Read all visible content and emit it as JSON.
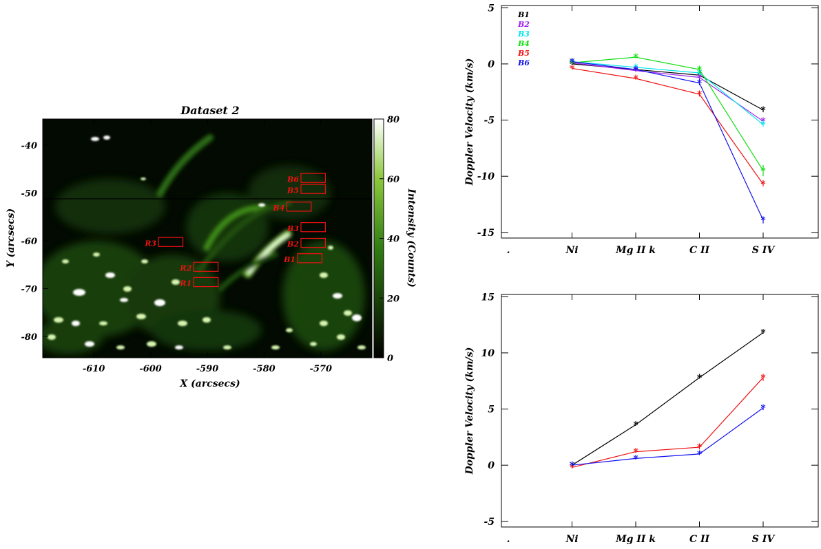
{
  "colors": {
    "map_low": "#000000",
    "map_high": "#ffffff",
    "map_green": "#3a8f1a",
    "region_box": "#ee1111",
    "axis": "#000000"
  },
  "chart_data": [
    {
      "type": "heatmap",
      "title": "Dataset 2",
      "xlabel": "X (arcsecs)",
      "ylabel": "Y (arcsecs)",
      "xlim": [
        -619,
        -561
      ],
      "ylim": [
        -84.5,
        -34.5
      ],
      "xticks": [
        -610,
        -600,
        -590,
        -580,
        -570
      ],
      "yticks": [
        -40,
        -50,
        -60,
        -70,
        -80
      ],
      "colorbar": {
        "label": "Intensity (Counts)",
        "range": [
          0,
          80
        ],
        "ticks": [
          0,
          20,
          40,
          60,
          80
        ]
      },
      "regions": [
        {
          "name": "B6",
          "x0": -573.5,
          "x1": -569.2,
          "y0": -47.8,
          "y1": -45.9
        },
        {
          "name": "B5",
          "x0": -573.5,
          "x1": -569.2,
          "y0": -50.1,
          "y1": -48.2
        },
        {
          "name": "B4",
          "x0": -576.0,
          "x1": -571.7,
          "y0": -53.8,
          "y1": -51.9
        },
        {
          "name": "B3",
          "x0": -573.5,
          "x1": -569.2,
          "y0": -58.1,
          "y1": -56.2
        },
        {
          "name": "B2",
          "x0": -573.5,
          "x1": -569.2,
          "y0": -61.4,
          "y1": -59.5
        },
        {
          "name": "B1",
          "x0": -574.1,
          "x1": -569.8,
          "y0": -64.6,
          "y1": -62.7
        },
        {
          "name": "R3",
          "x0": -598.6,
          "x1": -594.3,
          "y0": -61.2,
          "y1": -59.3
        },
        {
          "name": "R2",
          "x0": -592.4,
          "x1": -588.1,
          "y0": -66.4,
          "y1": -64.5
        },
        {
          "name": "R1",
          "x0": -592.4,
          "x1": -588.1,
          "y0": -69.6,
          "y1": -67.7
        }
      ]
    },
    {
      "type": "line",
      "title": "",
      "ylabel": "Doppler Velocity (km/s)",
      "xlabel": "",
      "categories": [
        ".",
        "Ni",
        "Mg II k",
        "C II",
        "S IV"
      ],
      "ylim": [
        -15.5,
        5.2
      ],
      "yticks": [
        5,
        0,
        -5,
        -10,
        -15
      ],
      "legend": "top-left",
      "series": [
        {
          "name": "B1",
          "color": "#000000",
          "values": [
            null,
            0.0,
            -0.5,
            -1.0,
            -4.1
          ],
          "errors": [
            null,
            0.1,
            0.1,
            0.2,
            0.2
          ]
        },
        {
          "name": "B2",
          "color": "#a020f0",
          "values": [
            null,
            0.1,
            -0.6,
            -1.2,
            -5.1
          ],
          "errors": [
            null,
            0.1,
            0.1,
            0.3,
            0.2
          ]
        },
        {
          "name": "B3",
          "color": "#00e5ee",
          "values": [
            null,
            0.2,
            -0.3,
            -0.8,
            -5.4
          ],
          "errors": [
            null,
            0.1,
            0.1,
            0.2,
            0.2
          ]
        },
        {
          "name": "B4",
          "color": "#11dd11",
          "values": [
            null,
            0.1,
            0.6,
            -0.5,
            -9.5
          ],
          "errors": [
            null,
            0.1,
            0.1,
            0.3,
            0.5
          ]
        },
        {
          "name": "B5",
          "color": "#ee1111",
          "values": [
            null,
            -0.4,
            -1.3,
            -2.7,
            -10.7
          ],
          "errors": [
            null,
            0.1,
            0.1,
            0.2,
            0.2
          ]
        },
        {
          "name": "B6",
          "color": "#1111ee",
          "values": [
            null,
            0.2,
            -0.5,
            -1.7,
            -13.9
          ],
          "errors": [
            null,
            0.1,
            0.1,
            0.2,
            0.3
          ]
        }
      ]
    },
    {
      "type": "line",
      "title": "",
      "ylabel": "Doppler Velocity (km/s)",
      "xlabel": "",
      "categories": [
        ".",
        "Ni",
        "Mg II k",
        "C II",
        "S IV"
      ],
      "ylim": [
        -5.5,
        15.2
      ],
      "yticks": [
        15,
        10,
        5,
        0,
        -5
      ],
      "series": [
        {
          "color": "#000000",
          "values": [
            null,
            0.0,
            3.6,
            7.8,
            11.8
          ],
          "errors": [
            null,
            0.1,
            0.1,
            0.1,
            0.1
          ]
        },
        {
          "color": "#ee1111",
          "values": [
            null,
            -0.2,
            1.2,
            1.6,
            7.8
          ],
          "errors": [
            null,
            0.1,
            0.1,
            0.2,
            0.3
          ]
        },
        {
          "color": "#1111ee",
          "values": [
            null,
            0.0,
            0.6,
            1.0,
            5.1
          ],
          "errors": [
            null,
            0.1,
            0.1,
            0.1,
            0.2
          ]
        }
      ]
    }
  ]
}
